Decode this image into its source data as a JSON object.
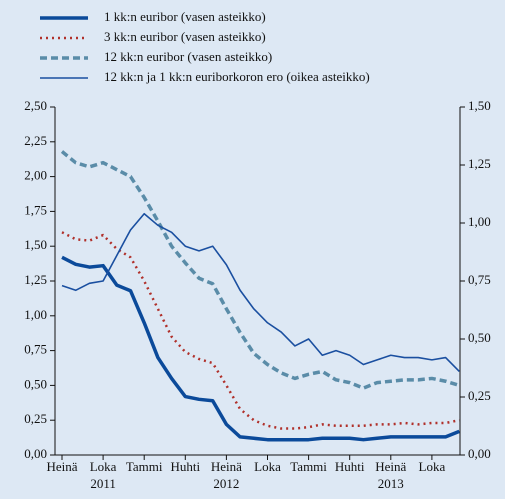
{
  "chart_data": {
    "type": "line",
    "categories": [
      "Heinä",
      null,
      null,
      "Loka",
      null,
      null,
      "Tammi",
      null,
      null,
      "Huhti",
      null,
      null,
      "Heinä",
      null,
      null,
      "Loka",
      null,
      null,
      "Tammi",
      null,
      null,
      "Huhti",
      null,
      null,
      "Heinä",
      null,
      null,
      "Loka",
      null,
      null
    ],
    "year_labels": [
      "2011",
      "2012",
      "2013"
    ],
    "series": [
      {
        "name": "1 kk:n euribor (vasen asteikko)",
        "color": "#0b4a9a",
        "style": "solid",
        "width": 3.5,
        "values": [
          1.42,
          1.37,
          1.35,
          1.36,
          1.22,
          1.18,
          0.95,
          0.7,
          0.55,
          0.42,
          0.4,
          0.39,
          0.22,
          0.13,
          0.12,
          0.11,
          0.11,
          0.11,
          0.11,
          0.12,
          0.12,
          0.12,
          0.11,
          0.12,
          0.13,
          0.13,
          0.13,
          0.13,
          0.13,
          0.17
        ]
      },
      {
        "name": "3 kk:n euribor (vasen asteikko)",
        "color": "#b0302a",
        "style": "dotted",
        "width": 2.5,
        "values": [
          1.6,
          1.55,
          1.54,
          1.58,
          1.48,
          1.42,
          1.25,
          1.05,
          0.85,
          0.74,
          0.69,
          0.66,
          0.5,
          0.33,
          0.25,
          0.21,
          0.19,
          0.19,
          0.2,
          0.22,
          0.21,
          0.21,
          0.21,
          0.22,
          0.22,
          0.23,
          0.22,
          0.23,
          0.23,
          0.25
        ]
      },
      {
        "name": "12 kk:n euribor (vasen asteikko)",
        "color": "#5a8ca8",
        "style": "dashed",
        "width": 3.5,
        "values": [
          2.18,
          2.1,
          2.07,
          2.1,
          2.05,
          2.0,
          1.85,
          1.68,
          1.5,
          1.38,
          1.27,
          1.23,
          1.05,
          0.88,
          0.73,
          0.65,
          0.59,
          0.55,
          0.58,
          0.6,
          0.54,
          0.52,
          0.48,
          0.52,
          0.53,
          0.54,
          0.54,
          0.55,
          0.53,
          0.5
        ]
      },
      {
        "name": "12 kk:n ja 1 kk:n euriborkoron ero (oikea asteikko)",
        "color": "#1a4fa0",
        "style": "solid",
        "width": 1.6,
        "axis": "y2",
        "values": [
          0.73,
          0.71,
          0.74,
          0.75,
          0.86,
          0.97,
          1.04,
          0.99,
          0.96,
          0.9,
          0.88,
          0.9,
          0.82,
          0.71,
          0.63,
          0.57,
          0.53,
          0.47,
          0.5,
          0.43,
          0.45,
          0.43,
          0.39,
          0.41,
          0.43,
          0.42,
          0.42,
          0.41,
          0.42,
          0.36
        ]
      }
    ],
    "ylim": [
      0,
      2.5
    ],
    "yticks": [
      {
        "value": 0,
        "label": "0,00"
      },
      {
        "value": 0.25,
        "label": "0,25"
      },
      {
        "value": 0.5,
        "label": "0,50"
      },
      {
        "value": 0.75,
        "label": "0,75"
      },
      {
        "value": 1,
        "label": "1,00"
      },
      {
        "value": 1.25,
        "label": "1,25"
      },
      {
        "value": 1.5,
        "label": "1,50"
      },
      {
        "value": 1.75,
        "label": "1,75"
      },
      {
        "value": 2,
        "label": "2,00"
      },
      {
        "value": 2.25,
        "label": "2,25"
      },
      {
        "value": 2.5,
        "label": "2,50"
      }
    ],
    "y2lim": [
      0,
      1.5
    ],
    "y2ticks": [
      {
        "value": 0,
        "label": "0,00"
      },
      {
        "value": 0.25,
        "label": "0,25"
      },
      {
        "value": 0.5,
        "label": "0,50"
      },
      {
        "value": 0.75,
        "label": "0,75"
      },
      {
        "value": 1,
        "label": "1,00"
      },
      {
        "value": 1.25,
        "label": "1,25"
      },
      {
        "value": 1.5,
        "label": "1,50"
      }
    ]
  }
}
